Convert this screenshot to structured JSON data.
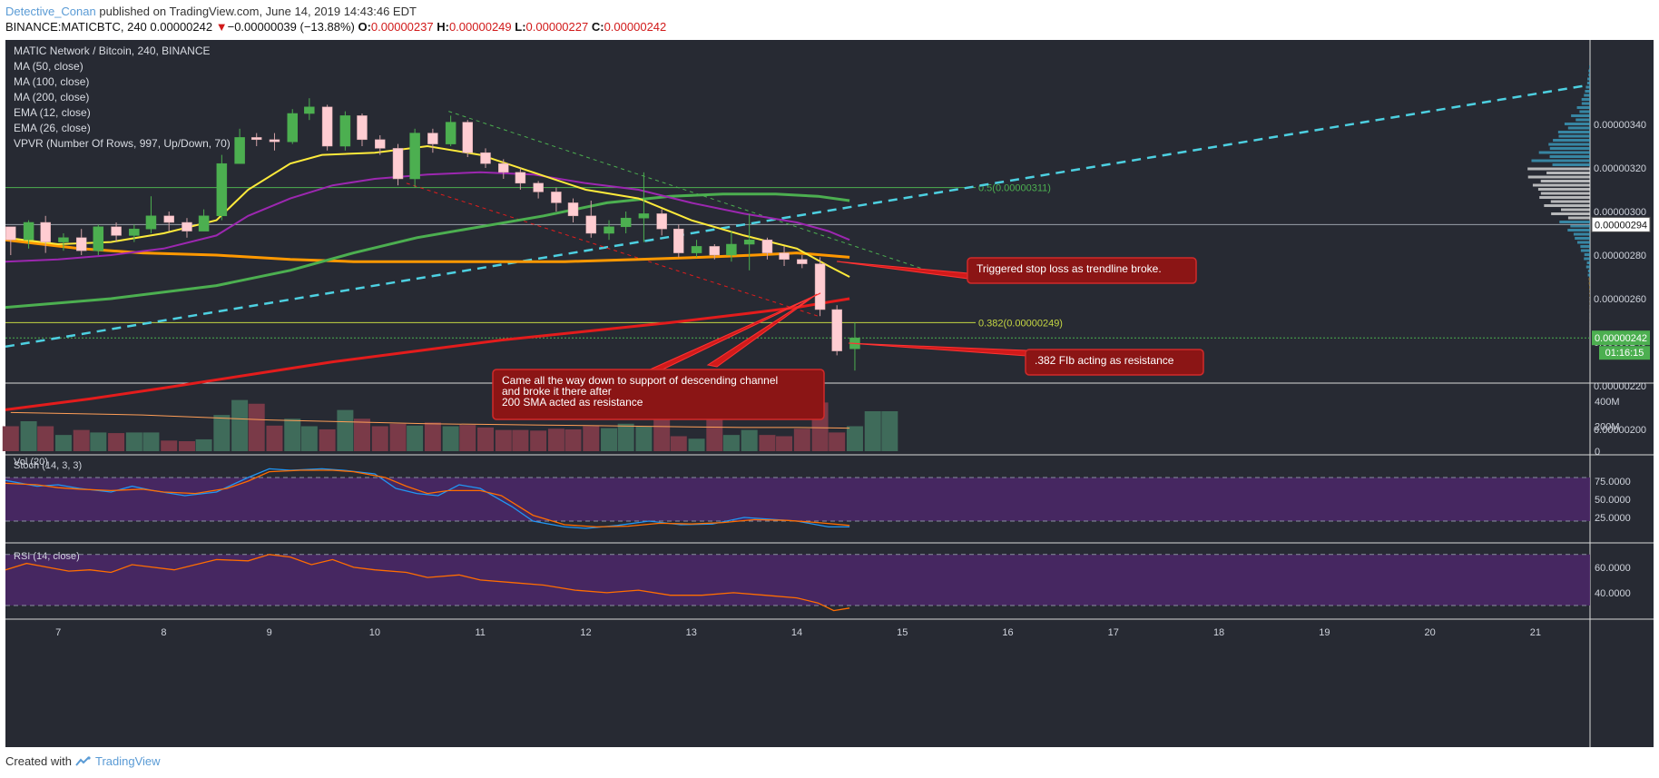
{
  "header": {
    "author": "Detective_Conan",
    "published": "published on TradingView.com, June 14, 2019 14:43:46 EDT",
    "symbol_line": "BINANCE:MATICBTC, 240",
    "last": "0.00000242",
    "change_arrow": "▼",
    "change": "−0.00000039 (−13.88%)",
    "o_label": "O:",
    "o": "0.00000237",
    "h_label": "H:",
    "h": "0.00000249",
    "l_label": "L:",
    "l": "0.00000227",
    "c_label": "C:",
    "c": "0.00000242"
  },
  "footer": {
    "created": "Created with",
    "brand": "TradingView"
  },
  "legend": [
    "MATIC Network / Bitcoin, 240, BINANCE",
    "MA (50, close)",
    "MA (100, close)",
    "MA (200, close)",
    "EMA (12, close)",
    "EMA (26, close)",
    "VPVR (Number Of Rows, 997, Up/Down, 70)"
  ],
  "annotations": {
    "stop": "Triggered stop loss as trendline broke.",
    "fib": ".382 FIb acting as resistance",
    "channel": [
      "Came all the way down to support of descending channel",
      "and broke it there after",
      "200 SMA acted as resistance"
    ]
  },
  "fib_levels": [
    {
      "label": "0.5(0.00000311)",
      "value": 311,
      "color": "#4caf50"
    },
    {
      "label": "0.382(0.00000249)",
      "value": 249,
      "color": "#c5d643"
    }
  ],
  "price_badges": {
    "current": "0.00000242",
    "countdown": "01:16:15",
    "marker": "0.00000294"
  },
  "colors": {
    "background": "#272a33",
    "up": "#4caf50",
    "down": "#ffcdd2",
    "ma50": "#ffeb3b",
    "ma100": "#4caf50",
    "ma200": "#e31c1c",
    "ema12": "#9c27b0",
    "ema26": "#ff9800",
    "trendline": "#4dd0e1",
    "annotation_bg": "#8b1515",
    "oscillator_band": "#4a2766"
  },
  "chart_data": {
    "type": "candlestick",
    "interval": "240",
    "x_axis": {
      "ticks": [
        "7",
        "8",
        "9",
        "10",
        "11",
        "12",
        "13",
        "14",
        "15",
        "16",
        "17",
        "18",
        "19",
        "20",
        "21"
      ]
    },
    "y_axis": {
      "ticks": [
        "0.00000340",
        "0.00000320",
        "0.00000300",
        "0.00000280",
        "0.00000260",
        "0.00000240",
        "0.00000220",
        "0.00000200"
      ],
      "unit_scale": "1e-8 BTC"
    },
    "candles": [
      [
        6.55,
        293,
        287,
        280,
        292
      ],
      [
        6.72,
        287,
        295,
        283,
        296
      ],
      [
        6.88,
        295,
        286,
        281,
        298
      ],
      [
        7.05,
        286,
        288,
        282,
        290
      ],
      [
        7.22,
        288,
        282,
        280,
        292
      ],
      [
        7.38,
        282,
        293,
        280,
        294
      ],
      [
        7.55,
        293,
        289,
        286,
        295
      ],
      [
        7.72,
        289,
        292,
        286,
        294
      ],
      [
        7.88,
        292,
        298,
        290,
        307
      ],
      [
        8.05,
        298,
        295,
        291,
        300
      ],
      [
        8.22,
        295,
        291,
        288,
        297
      ],
      [
        8.38,
        291,
        298,
        291,
        301
      ],
      [
        8.55,
        298,
        322,
        296,
        326
      ],
      [
        8.72,
        322,
        334,
        322,
        338
      ],
      [
        8.88,
        334,
        333,
        330,
        336
      ],
      [
        9.05,
        333,
        332,
        328,
        336
      ],
      [
        9.22,
        332,
        345,
        331,
        347
      ],
      [
        9.38,
        345,
        348,
        342,
        352
      ],
      [
        9.55,
        348,
        330,
        328,
        349
      ],
      [
        9.72,
        330,
        344,
        328,
        346
      ],
      [
        9.88,
        344,
        333,
        330,
        345
      ],
      [
        10.05,
        333,
        329,
        326,
        335
      ],
      [
        10.22,
        329,
        315,
        312,
        331
      ],
      [
        10.38,
        315,
        336,
        311,
        338
      ],
      [
        10.55,
        336,
        331,
        327,
        338
      ],
      [
        10.72,
        331,
        341,
        330,
        344
      ],
      [
        10.88,
        341,
        327,
        325,
        342
      ],
      [
        11.05,
        327,
        322,
        320,
        329
      ],
      [
        11.22,
        322,
        318,
        315,
        324
      ],
      [
        11.38,
        318,
        313,
        310,
        320
      ],
      [
        11.55,
        313,
        309,
        306,
        314
      ],
      [
        11.72,
        309,
        304,
        300,
        311
      ],
      [
        11.88,
        304,
        298,
        295,
        306
      ],
      [
        12.05,
        298,
        290,
        288,
        305
      ],
      [
        12.22,
        290,
        293,
        287,
        296
      ],
      [
        12.38,
        293,
        297,
        290,
        300
      ],
      [
        12.55,
        297,
        299,
        286,
        318
      ],
      [
        12.72,
        299,
        292,
        289,
        301
      ],
      [
        12.88,
        292,
        281,
        279,
        294
      ],
      [
        13.05,
        281,
        284,
        279,
        287
      ],
      [
        13.22,
        284,
        280,
        278,
        285
      ],
      [
        13.38,
        280,
        285,
        277,
        291
      ],
      [
        13.55,
        285,
        287,
        273,
        299
      ],
      [
        13.72,
        287,
        281,
        278,
        288
      ],
      [
        13.88,
        281,
        278,
        275,
        284
      ],
      [
        14.05,
        278,
        276,
        274,
        280
      ],
      [
        14.22,
        276,
        255,
        252,
        279
      ],
      [
        14.38,
        255,
        236,
        234,
        257
      ],
      [
        14.55,
        237,
        242,
        227,
        249
      ]
    ],
    "ma50": [
      [
        6.5,
        256
      ],
      [
        7.5,
        260
      ],
      [
        8.5,
        266
      ],
      [
        9.2,
        273
      ],
      [
        9.8,
        281
      ],
      [
        10.4,
        288
      ],
      [
        11,
        293
      ],
      [
        11.6,
        298
      ],
      [
        12.2,
        304
      ],
      [
        12.8,
        307
      ],
      [
        13.3,
        308
      ],
      [
        13.8,
        308
      ],
      [
        14.2,
        307
      ],
      [
        14.5,
        305
      ]
    ],
    "ma100": [
      [
        6.5,
        287
      ],
      [
        7.2,
        283
      ],
      [
        7.8,
        281
      ],
      [
        8.5,
        280
      ],
      [
        9.2,
        278
      ],
      [
        9.8,
        277
      ],
      [
        10.5,
        277
      ],
      [
        11.2,
        277
      ],
      [
        11.8,
        277
      ],
      [
        12.5,
        278
      ],
      [
        13.1,
        279
      ],
      [
        13.6,
        280
      ],
      [
        14,
        281
      ],
      [
        14.5,
        279
      ]
    ],
    "ma200": [
      [
        6.5,
        209
      ],
      [
        7.3,
        214
      ],
      [
        8,
        219
      ],
      [
        8.8,
        225
      ],
      [
        9.6,
        231
      ],
      [
        10.4,
        236
      ],
      [
        11.2,
        241
      ],
      [
        12,
        245
      ],
      [
        12.8,
        249
      ],
      [
        13.5,
        253
      ],
      [
        14,
        256
      ],
      [
        14.5,
        260
      ]
    ],
    "ema12": [
      [
        6.5,
        288
      ],
      [
        7,
        285
      ],
      [
        7.5,
        286
      ],
      [
        8,
        290
      ],
      [
        8.5,
        296
      ],
      [
        8.8,
        310
      ],
      [
        9.2,
        322
      ],
      [
        9.5,
        326
      ],
      [
        10,
        327
      ],
      [
        10.5,
        330
      ],
      [
        11,
        326
      ],
      [
        11.5,
        318
      ],
      [
        12,
        310
      ],
      [
        12.5,
        306
      ],
      [
        13,
        296
      ],
      [
        13.5,
        289
      ],
      [
        14,
        283
      ],
      [
        14.3,
        275
      ],
      [
        14.5,
        270
      ]
    ],
    "ema26": [
      [
        6.5,
        277
      ],
      [
        7,
        278
      ],
      [
        7.5,
        280
      ],
      [
        8,
        283
      ],
      [
        8.5,
        289
      ],
      [
        8.8,
        298
      ],
      [
        9.2,
        306
      ],
      [
        9.6,
        312
      ],
      [
        10,
        315
      ],
      [
        10.5,
        317
      ],
      [
        11,
        318
      ],
      [
        11.5,
        317
      ],
      [
        12,
        313
      ],
      [
        12.5,
        310
      ],
      [
        13,
        304
      ],
      [
        13.5,
        299
      ],
      [
        14,
        295
      ],
      [
        14.3,
        291
      ],
      [
        14.5,
        287
      ]
    ],
    "trendline": [
      [
        6.5,
        238
      ],
      [
        7.5,
        246
      ],
      [
        8.5,
        254
      ],
      [
        9.5,
        262
      ],
      [
        10.5,
        270
      ],
      [
        11.5,
        278
      ],
      [
        12.5,
        286
      ],
      [
        13.5,
        294
      ],
      [
        14.5,
        302
      ],
      [
        15.5,
        310
      ],
      [
        16.5,
        318
      ],
      [
        17.5,
        326
      ],
      [
        18.5,
        334
      ],
      [
        19.5,
        342
      ],
      [
        20.5,
        350
      ],
      [
        21.5,
        358
      ]
    ],
    "channel_upper": [
      [
        10.7,
        346
      ],
      [
        15.3,
        272
      ]
    ],
    "channel_lower": [
      [
        10.3,
        313
      ],
      [
        14.2,
        252
      ]
    ],
    "volume_M": [
      [
        6.55,
        200
      ],
      [
        6.72,
        240
      ],
      [
        6.88,
        200
      ],
      [
        7.05,
        130
      ],
      [
        7.22,
        170
      ],
      [
        7.38,
        150
      ],
      [
        7.55,
        145
      ],
      [
        7.72,
        150
      ],
      [
        7.88,
        150
      ],
      [
        8.05,
        85
      ],
      [
        8.22,
        80
      ],
      [
        8.38,
        95
      ],
      [
        8.55,
        290
      ],
      [
        8.72,
        410
      ],
      [
        8.88,
        380
      ],
      [
        9.05,
        205
      ],
      [
        9.22,
        260
      ],
      [
        9.38,
        200
      ],
      [
        9.55,
        175
      ],
      [
        9.72,
        330
      ],
      [
        9.88,
        260
      ],
      [
        10.05,
        200
      ],
      [
        10.22,
        220
      ],
      [
        10.38,
        205
      ],
      [
        10.55,
        230
      ],
      [
        10.72,
        200
      ],
      [
        10.88,
        210
      ],
      [
        11.05,
        190
      ],
      [
        11.22,
        170
      ],
      [
        11.38,
        170
      ],
      [
        11.55,
        165
      ],
      [
        11.72,
        180
      ],
      [
        11.88,
        175
      ],
      [
        12.05,
        200
      ],
      [
        12.22,
        185
      ],
      [
        12.38,
        220
      ],
      [
        12.55,
        200
      ],
      [
        12.72,
        350
      ],
      [
        12.88,
        120
      ],
      [
        13.05,
        100
      ],
      [
        13.22,
        400
      ],
      [
        13.38,
        130
      ],
      [
        13.55,
        170
      ],
      [
        13.72,
        130
      ],
      [
        13.88,
        120
      ],
      [
        14.05,
        180
      ],
      [
        14.22,
        390
      ],
      [
        14.38,
        150
      ],
      [
        14.55,
        200
      ],
      [
        14.72,
        320
      ],
      [
        14.88,
        320
      ]
    ],
    "volume_ma": [
      [
        6.55,
        310
      ],
      [
        7.2,
        300
      ],
      [
        7.8,
        290
      ],
      [
        8.4,
        270
      ],
      [
        9,
        250
      ],
      [
        9.5,
        240
      ],
      [
        10,
        230
      ],
      [
        10.5,
        220
      ],
      [
        11,
        215
      ],
      [
        11.5,
        210
      ],
      [
        12,
        205
      ],
      [
        12.5,
        200
      ],
      [
        13,
        195
      ],
      [
        13.5,
        190
      ],
      [
        14,
        190
      ],
      [
        14.5,
        185
      ]
    ],
    "volume_axis": [
      "400M",
      "200M",
      "0"
    ],
    "stoch_k": [
      [
        6.5,
        76
      ],
      [
        6.8,
        68
      ],
      [
        7,
        70
      ],
      [
        7.2,
        65
      ],
      [
        7.5,
        60
      ],
      [
        7.7,
        68
      ],
      [
        7.9,
        62
      ],
      [
        8.2,
        55
      ],
      [
        8.5,
        60
      ],
      [
        8.8,
        80
      ],
      [
        9,
        92
      ],
      [
        9.2,
        90
      ],
      [
        9.5,
        92
      ],
      [
        9.7,
        90
      ],
      [
        10,
        85
      ],
      [
        10.2,
        65
      ],
      [
        10.4,
        58
      ],
      [
        10.6,
        55
      ],
      [
        10.8,
        70
      ],
      [
        11,
        65
      ],
      [
        11.3,
        40
      ],
      [
        11.5,
        20
      ],
      [
        11.8,
        12
      ],
      [
        12,
        10
      ],
      [
        12.3,
        14
      ],
      [
        12.6,
        20
      ],
      [
        12.9,
        15
      ],
      [
        13.2,
        16
      ],
      [
        13.5,
        25
      ],
      [
        13.8,
        22
      ],
      [
        14,
        20
      ],
      [
        14.3,
        12
      ],
      [
        14.5,
        12
      ]
    ],
    "stoch_d": [
      [
        6.5,
        72
      ],
      [
        6.8,
        70
      ],
      [
        7,
        66
      ],
      [
        7.2,
        64
      ],
      [
        7.5,
        62
      ],
      [
        7.8,
        64
      ],
      [
        8,
        60
      ],
      [
        8.3,
        58
      ],
      [
        8.6,
        65
      ],
      [
        8.8,
        75
      ],
      [
        9,
        88
      ],
      [
        9.3,
        90
      ],
      [
        9.6,
        90
      ],
      [
        9.8,
        88
      ],
      [
        10.1,
        80
      ],
      [
        10.3,
        68
      ],
      [
        10.5,
        58
      ],
      [
        10.7,
        62
      ],
      [
        11,
        62
      ],
      [
        11.2,
        55
      ],
      [
        11.5,
        28
      ],
      [
        11.8,
        15
      ],
      [
        12.1,
        12
      ],
      [
        12.4,
        13
      ],
      [
        12.7,
        17
      ],
      [
        13,
        16
      ],
      [
        13.3,
        18
      ],
      [
        13.6,
        22
      ],
      [
        13.9,
        21
      ],
      [
        14.2,
        18
      ],
      [
        14.5,
        14
      ]
    ],
    "stoch_axis": [
      "75.0000",
      "50.0000",
      "25.0000"
    ],
    "rsi": [
      [
        6.5,
        58
      ],
      [
        6.7,
        63
      ],
      [
        6.9,
        60
      ],
      [
        7.1,
        57
      ],
      [
        7.3,
        58
      ],
      [
        7.5,
        56
      ],
      [
        7.7,
        62
      ],
      [
        7.9,
        60
      ],
      [
        8.1,
        58
      ],
      [
        8.3,
        62
      ],
      [
        8.5,
        66
      ],
      [
        8.8,
        65
      ],
      [
        9,
        70
      ],
      [
        9.2,
        68
      ],
      [
        9.4,
        62
      ],
      [
        9.6,
        66
      ],
      [
        9.8,
        60
      ],
      [
        10,
        58
      ],
      [
        10.3,
        56
      ],
      [
        10.5,
        52
      ],
      [
        10.8,
        54
      ],
      [
        11,
        50
      ],
      [
        11.3,
        48
      ],
      [
        11.6,
        46
      ],
      [
        11.9,
        42
      ],
      [
        12.2,
        40
      ],
      [
        12.5,
        42
      ],
      [
        12.8,
        38
      ],
      [
        13.1,
        38
      ],
      [
        13.4,
        40
      ],
      [
        13.7,
        38
      ],
      [
        14,
        36
      ],
      [
        14.2,
        32
      ],
      [
        14.35,
        26
      ],
      [
        14.5,
        28
      ]
    ],
    "rsi_axis": [
      "60.0000",
      "40.0000"
    ]
  }
}
